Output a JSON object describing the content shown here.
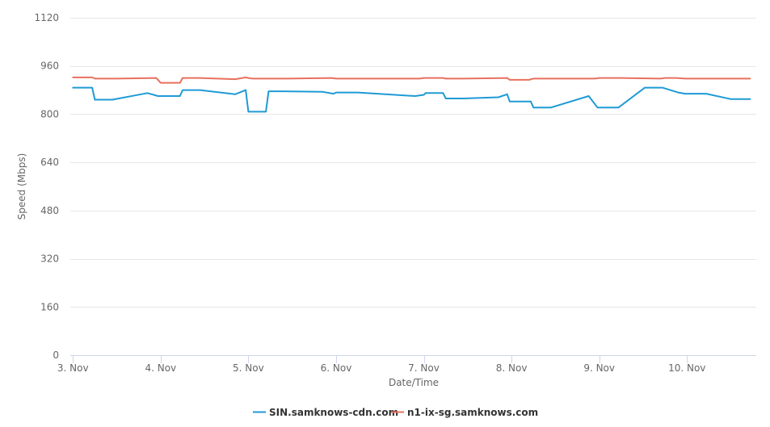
{
  "chart_data": {
    "type": "line",
    "title": "",
    "xlabel": "Date/Time",
    "ylabel": "Speed (Mbps)",
    "ylim": [
      0,
      1120
    ],
    "y_ticks": [
      0,
      160,
      320,
      480,
      640,
      800,
      960,
      1120
    ],
    "x_ticks": [
      {
        "day": 3,
        "label": "3. Nov"
      },
      {
        "day": 4,
        "label": "4. Nov"
      },
      {
        "day": 5,
        "label": "5. Nov"
      },
      {
        "day": 6,
        "label": "6. Nov"
      },
      {
        "day": 7,
        "label": "7. Nov"
      },
      {
        "day": 8,
        "label": "8. Nov"
      },
      {
        "day": 9,
        "label": "9. Nov"
      },
      {
        "day": 10,
        "label": "10. Nov"
      }
    ],
    "xlim": [
      2.97,
      10.79
    ],
    "grid": true,
    "legend_position": "bottom-center",
    "series": [
      {
        "name": "SIN.samknows-cdn.com",
        "color": "#1f9ad6",
        "points": [
          [
            3.0,
            888
          ],
          [
            3.22,
            888
          ],
          [
            3.25,
            848
          ],
          [
            3.45,
            848
          ],
          [
            3.85,
            870
          ],
          [
            3.97,
            860
          ],
          [
            4.22,
            860
          ],
          [
            4.25,
            880
          ],
          [
            4.45,
            880
          ],
          [
            4.85,
            866
          ],
          [
            4.97,
            880
          ],
          [
            5.0,
            808
          ],
          [
            5.2,
            808
          ],
          [
            5.23,
            876
          ],
          [
            5.4,
            876
          ],
          [
            5.85,
            874
          ],
          [
            5.97,
            868
          ],
          [
            6.0,
            872
          ],
          [
            6.25,
            872
          ],
          [
            6.9,
            860
          ],
          [
            7.0,
            864
          ],
          [
            7.02,
            870
          ],
          [
            7.22,
            870
          ],
          [
            7.25,
            852
          ],
          [
            7.45,
            852
          ],
          [
            7.85,
            856
          ],
          [
            7.95,
            866
          ],
          [
            7.98,
            842
          ],
          [
            8.22,
            842
          ],
          [
            8.25,
            822
          ],
          [
            8.45,
            822
          ],
          [
            8.88,
            860
          ],
          [
            8.98,
            822
          ],
          [
            9.22,
            822
          ],
          [
            9.52,
            888
          ],
          [
            9.72,
            888
          ],
          [
            9.9,
            872
          ],
          [
            9.98,
            868
          ],
          [
            10.22,
            868
          ],
          [
            10.5,
            850
          ],
          [
            10.72,
            850
          ]
        ]
      },
      {
        "name": "n1-ix-sg.samknows.com",
        "color": "#e8705e",
        "points": [
          [
            3.0,
            922
          ],
          [
            3.22,
            922
          ],
          [
            3.25,
            918
          ],
          [
            3.5,
            918
          ],
          [
            3.95,
            920
          ],
          [
            4.0,
            904
          ],
          [
            4.22,
            904
          ],
          [
            4.25,
            920
          ],
          [
            4.45,
            920
          ],
          [
            4.85,
            916
          ],
          [
            4.97,
            922
          ],
          [
            5.0,
            920
          ],
          [
            5.05,
            918
          ],
          [
            5.45,
            918
          ],
          [
            5.95,
            920
          ],
          [
            6.0,
            918
          ],
          [
            6.95,
            918
          ],
          [
            7.0,
            920
          ],
          [
            7.22,
            920
          ],
          [
            7.25,
            918
          ],
          [
            7.45,
            918
          ],
          [
            7.95,
            920
          ],
          [
            7.98,
            914
          ],
          [
            8.2,
            914
          ],
          [
            8.25,
            918
          ],
          [
            8.5,
            918
          ],
          [
            8.95,
            918
          ],
          [
            9.0,
            920
          ],
          [
            9.25,
            920
          ],
          [
            9.7,
            918
          ],
          [
            9.75,
            920
          ],
          [
            9.88,
            920
          ],
          [
            9.98,
            918
          ],
          [
            10.45,
            918
          ],
          [
            10.72,
            918
          ]
        ]
      }
    ]
  }
}
